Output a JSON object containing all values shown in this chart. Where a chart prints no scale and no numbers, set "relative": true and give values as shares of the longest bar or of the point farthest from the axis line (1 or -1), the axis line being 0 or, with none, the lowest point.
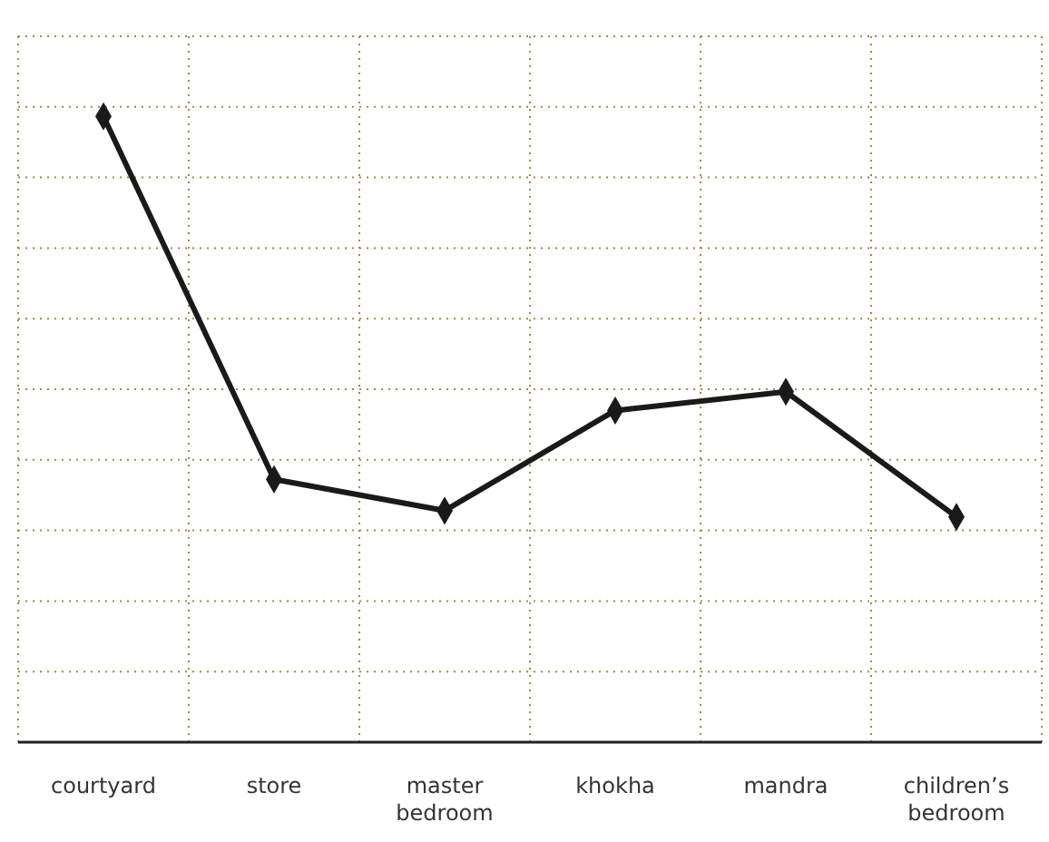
{
  "chart_data": {
    "type": "line",
    "relative": true,
    "categories": [
      "courtyard",
      "store",
      "master bedroom",
      "khokha",
      "mandra",
      "children’s bedroom"
    ],
    "series": [
      {
        "color": "#1a1a1a",
        "values": [
          1,
          0.42,
          0.37,
          0.53,
          0.56,
          0.36
        ]
      }
    ],
    "grid": true,
    "marker": "diamond",
    "line_style": "solid"
  }
}
